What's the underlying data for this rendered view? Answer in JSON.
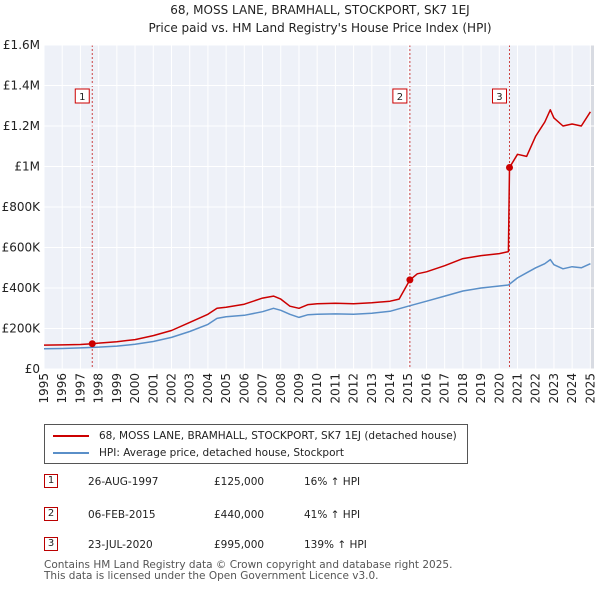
{
  "chart_data": {
    "type": "line",
    "title": "68, MOSS LANE, BRAMHALL, STOCKPORT, SK7 1EJ",
    "subtitle": "Price paid vs. HM Land Registry's House Price Index (HPI)",
    "xlabel": "",
    "ylabel": "",
    "xlim": [
      1995,
      2025.2
    ],
    "ylim": [
      0,
      1600000
    ],
    "x_ticks": [
      "1995",
      "1996",
      "1997",
      "1998",
      "1999",
      "2000",
      "2001",
      "2002",
      "2003",
      "2004",
      "2005",
      "2006",
      "2007",
      "2008",
      "2009",
      "2010",
      "2011",
      "2012",
      "2013",
      "2014",
      "2015",
      "2016",
      "2017",
      "2018",
      "2019",
      "2020",
      "2021",
      "2022",
      "2023",
      "2024",
      "2025"
    ],
    "y_ticks": [
      {
        "value": 0,
        "label": "£0"
      },
      {
        "value": 200000,
        "label": "£200K"
      },
      {
        "value": 400000,
        "label": "£400K"
      },
      {
        "value": 600000,
        "label": "£600K"
      },
      {
        "value": 800000,
        "label": "£800K"
      },
      {
        "value": 1000000,
        "label": "£1M"
      },
      {
        "value": 1200000,
        "label": "£1.2M"
      },
      {
        "value": 1400000,
        "label": "£1.4M"
      },
      {
        "value": 1600000,
        "label": "£1.6M"
      }
    ],
    "series": [
      {
        "name": "68, MOSS LANE, BRAMHALL, STOCKPORT, SK7 1EJ (detached house)",
        "color": "#cc0000",
        "x": [
          1995.0,
          1996.0,
          1997.0,
          1997.65,
          1998.0,
          1999.0,
          2000.0,
          2001.0,
          2002.0,
          2003.0,
          2004.0,
          2004.5,
          2005.0,
          2006.0,
          2007.0,
          2007.6,
          2008.0,
          2008.5,
          2009.0,
          2009.5,
          2010.0,
          2011.0,
          2012.0,
          2013.0,
          2014.0,
          2014.5,
          2015.09,
          2015.5,
          2016.0,
          2017.0,
          2018.0,
          2019.0,
          2020.0,
          2020.5,
          2020.56,
          2021.0,
          2021.5,
          2022.0,
          2022.5,
          2022.8,
          2023.0,
          2023.5,
          2024.0,
          2024.5,
          2025.0
        ],
        "values": [
          118000,
          119000,
          121000,
          125000,
          128000,
          135000,
          145000,
          165000,
          190000,
          230000,
          270000,
          300000,
          305000,
          320000,
          350000,
          360000,
          345000,
          310000,
          300000,
          318000,
          322000,
          325000,
          322000,
          327000,
          335000,
          345000,
          440000,
          470000,
          480000,
          510000,
          545000,
          560000,
          570000,
          580000,
          995000,
          1060000,
          1050000,
          1150000,
          1220000,
          1280000,
          1240000,
          1200000,
          1210000,
          1200000,
          1270000
        ]
      },
      {
        "name": "HPI: Average price, detached house, Stockport",
        "color": "#5a8fc8",
        "x": [
          1995.0,
          1996.0,
          1997.0,
          1998.0,
          1999.0,
          2000.0,
          2001.0,
          2002.0,
          2003.0,
          2004.0,
          2004.5,
          2005.0,
          2006.0,
          2007.0,
          2007.6,
          2008.0,
          2008.5,
          2009.0,
          2009.5,
          2010.0,
          2011.0,
          2012.0,
          2013.0,
          2014.0,
          2015.0,
          2016.0,
          2017.0,
          2018.0,
          2019.0,
          2020.0,
          2020.5,
          2021.0,
          2021.5,
          2022.0,
          2022.5,
          2022.8,
          2023.0,
          2023.5,
          2024.0,
          2024.5,
          2025.0
        ],
        "values": [
          100000,
          101000,
          104000,
          108000,
          113000,
          122000,
          136000,
          156000,
          185000,
          220000,
          250000,
          258000,
          265000,
          283000,
          300000,
          290000,
          270000,
          255000,
          268000,
          270000,
          272000,
          270000,
          275000,
          285000,
          310000,
          335000,
          360000,
          385000,
          400000,
          410000,
          415000,
          450000,
          475000,
          500000,
          520000,
          540000,
          515000,
          495000,
          505000,
          500000,
          520000
        ]
      }
    ],
    "annotations": [
      {
        "label": "1",
        "x": 1997.65,
        "value": 125000,
        "date": "26-AUG-1997",
        "price": "£125,000",
        "hpi": "16% ↑ HPI"
      },
      {
        "label": "2",
        "x": 2015.09,
        "value": 440000,
        "date": "06-FEB-2015",
        "price": "£440,000",
        "hpi": "41% ↑ HPI"
      },
      {
        "label": "3",
        "x": 2020.56,
        "value": 995000,
        "date": "23-JUL-2020",
        "price": "£995,000",
        "hpi": "139% ↑ HPI"
      }
    ]
  },
  "legend": {
    "items": [
      {
        "label": "68, MOSS LANE, BRAMHALL, STOCKPORT, SK7 1EJ (detached house)",
        "color": "#cc0000"
      },
      {
        "label": "HPI: Average price, detached house, Stockport",
        "color": "#5a8fc8"
      }
    ]
  },
  "footer": {
    "line1": "Contains HM Land Registry data © Crown copyright and database right 2025.",
    "line2": "This data is licensed under the Open Government Licence v3.0."
  }
}
